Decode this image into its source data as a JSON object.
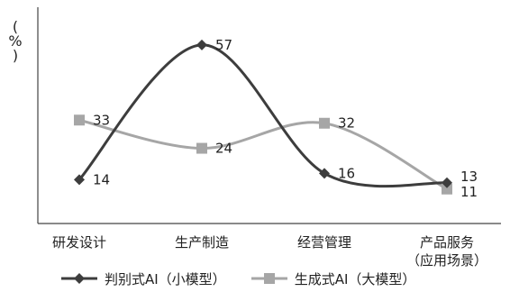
{
  "chart_data": {
    "type": "line",
    "ylabel": "（%）",
    "categories": [
      "研发设计",
      "生产制造",
      "经营管理",
      "产品服务\n（应用场景）"
    ],
    "ylim": [
      0,
      65
    ],
    "grid": false,
    "legend_position": "bottom",
    "series": [
      {
        "name": "判别式AI（小模型）",
        "values": [
          14,
          57,
          16,
          13
        ],
        "color": "#3d3d3d",
        "marker": "diamond",
        "smooth": true
      },
      {
        "name": "生成式AI（大模型）",
        "values": [
          33,
          24,
          32,
          11
        ],
        "color": "#a6a6a6",
        "marker": "square",
        "smooth": true
      }
    ]
  }
}
